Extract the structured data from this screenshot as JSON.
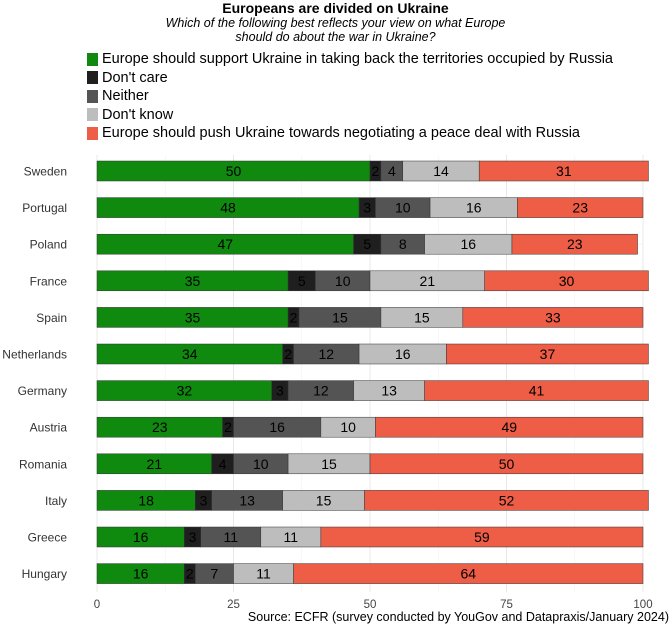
{
  "title": "Europeans are divided on Ukraine",
  "subtitle": "Which of the following best reflects your view on what Europe should do about the war in Ukraine?",
  "caption": "Source: ECFR (survey conducted by YouGov and Datapraxis/January 2024)",
  "chart_data": {
    "type": "bar",
    "orientation": "horizontal",
    "stacked": true,
    "categories": [
      "Sweden",
      "Portugal",
      "Poland",
      "France",
      "Spain",
      "Netherlands",
      "Germany",
      "Austria",
      "Romania",
      "Italy",
      "Greece",
      "Hungary"
    ],
    "series": [
      {
        "name": "Europe should support Ukraine in taking back the territories occupied by Russia",
        "color": "#0f8a0f",
        "values": [
          50,
          48,
          47,
          35,
          35,
          34,
          32,
          23,
          21,
          18,
          16,
          16
        ]
      },
      {
        "name": "Don't care",
        "color": "#1f1f1f",
        "values": [
          2,
          3,
          5,
          5,
          2,
          2,
          3,
          2,
          4,
          3,
          3,
          2
        ]
      },
      {
        "name": "Neither",
        "color": "#545454",
        "values": [
          4,
          10,
          8,
          10,
          15,
          12,
          12,
          16,
          10,
          13,
          11,
          7
        ]
      },
      {
        "name": "Don't know",
        "color": "#bdbdbd",
        "values": [
          14,
          16,
          16,
          21,
          15,
          16,
          13,
          10,
          15,
          15,
          11,
          11
        ]
      },
      {
        "name": "Europe should push Ukraine towards negotiating a peace deal with Russia",
        "color": "#ee5d45",
        "values": [
          31,
          23,
          23,
          30,
          33,
          37,
          41,
          49,
          50,
          52,
          59,
          64
        ]
      }
    ],
    "xlim": [
      0,
      100
    ],
    "xticks": [
      0,
      25,
      50,
      75,
      100
    ],
    "grid": true,
    "legend_position": "top-left"
  }
}
